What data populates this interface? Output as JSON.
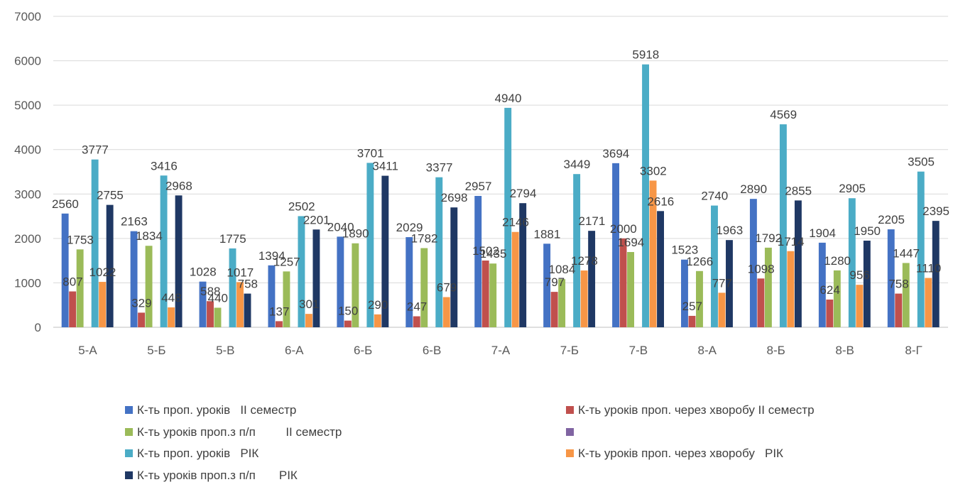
{
  "chart_data": {
    "type": "bar",
    "categories": [
      "5-А",
      "5-Б",
      "5-В",
      "6-А",
      "6-Б",
      "6-В",
      "7-А",
      "7-Б",
      "7-В",
      "8-А",
      "8-Б",
      "8-В",
      "8-Г"
    ],
    "ylim": [
      0,
      7000
    ],
    "yticks": [
      0,
      1000,
      2000,
      3000,
      4000,
      5000,
      6000,
      7000
    ],
    "grid": true,
    "legend_position": "bottom",
    "series": [
      {
        "name": "К-ть проп. уроків   ІІ семестр",
        "color": "#4472C4",
        "values": [
          2560,
          2163,
          1028,
          1394,
          2040,
          2029,
          2957,
          1881,
          3694,
          1523,
          2890,
          1904,
          2205
        ]
      },
      {
        "name": "К-ть уроків проп. через хворобу ІІ семестр",
        "color": "#C0504D",
        "values": [
          807,
          329,
          588,
          137,
          150,
          247,
          1502,
          797,
          2000,
          257,
          1098,
          624,
          758
        ]
      },
      {
        "name": "К-ть уроків проп.з п/п         ІІ семестр",
        "color": "#9BBB59",
        "values": [
          1753,
          1834,
          440,
          1257,
          1890,
          1782,
          1435,
          1084,
          1694,
          1266,
          1792,
          1280,
          1447
        ]
      },
      {
        "name": "",
        "color": "#8064A2",
        "values": [
          0,
          0,
          0,
          0,
          0,
          0,
          0,
          0,
          0,
          0,
          0,
          0,
          0
        ]
      },
      {
        "name": "К-ть проп. уроків   РІК",
        "color": "#4BACC6",
        "values": [
          3777,
          3416,
          1775,
          2502,
          3701,
          3377,
          4940,
          3449,
          5918,
          2740,
          4569,
          2905,
          3505
        ]
      },
      {
        "name": "К-ть уроків проп. через хворобу   РІК",
        "color": "#F79646",
        "values": [
          1022,
          448,
          1017,
          301,
          290,
          679,
          2146,
          1278,
          3302,
          777,
          1714,
          956,
          1110
        ]
      },
      {
        "name": "К-ть уроків проп.з п/п       РІК",
        "color": "#1F3864",
        "values": [
          2755,
          2968,
          758,
          2201,
          3411,
          2698,
          2794,
          2171,
          2616,
          1963,
          2855,
          1950,
          2395
        ]
      }
    ]
  }
}
